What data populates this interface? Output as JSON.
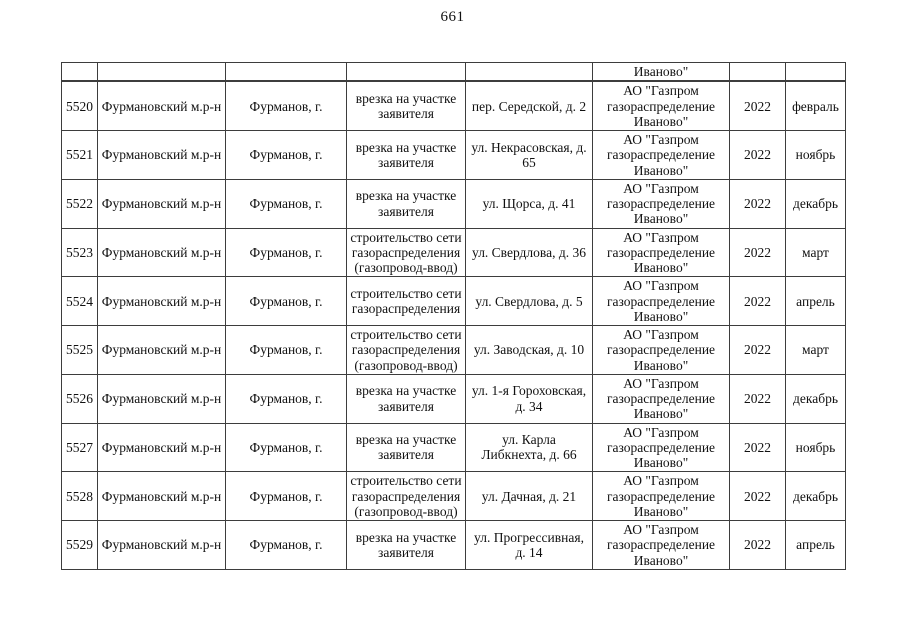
{
  "page": {
    "number": "661"
  },
  "table": {
    "carryover": {
      "num": "",
      "district": "",
      "city": "",
      "work": "",
      "address": "",
      "org": "Иваново\"",
      "year": "",
      "month": ""
    },
    "rows": [
      {
        "num": "5520",
        "district": "Фурмановский м.р-н",
        "city": "Фурманов, г.",
        "work": "врезка на участке\nзаявителя",
        "address": "пер. Середской, д. 2",
        "org": "АО \"Газпром\nгазораспределение\nИваново\"",
        "year": "2022",
        "month": "февраль"
      },
      {
        "num": "5521",
        "district": "Фурмановский м.р-н",
        "city": "Фурманов, г.",
        "work": "врезка на участке\nзаявителя",
        "address": "ул. Некрасовская, д.\n65",
        "org": "АО \"Газпром\nгазораспределение\nИваново\"",
        "year": "2022",
        "month": "ноябрь"
      },
      {
        "num": "5522",
        "district": "Фурмановский м.р-н",
        "city": "Фурманов, г.",
        "work": "врезка на участке\nзаявителя",
        "address": "ул. Щорса, д. 41",
        "org": "АО \"Газпром\nгазораспределение\nИваново\"",
        "year": "2022",
        "month": "декабрь"
      },
      {
        "num": "5523",
        "district": "Фурмановский м.р-н",
        "city": "Фурманов, г.",
        "work": "строительство сети\nгазораспределения\n(газопровод-ввод)",
        "address": "ул. Свердлова, д. 36",
        "org": "АО \"Газпром\nгазораспределение\nИваново\"",
        "year": "2022",
        "month": "март"
      },
      {
        "num": "5524",
        "district": "Фурмановский м.р-н",
        "city": "Фурманов, г.",
        "work": "строительство сети\nгазораспределения",
        "address": "ул. Свердлова, д. 5",
        "org": "АО \"Газпром\nгазораспределение\nИваново\"",
        "year": "2022",
        "month": "апрель"
      },
      {
        "num": "5525",
        "district": "Фурмановский м.р-н",
        "city": "Фурманов, г.",
        "work": "строительство сети\nгазораспределения\n(газопровод-ввод)",
        "address": "ул. Заводская, д. 10",
        "org": "АО \"Газпром\nгазораспределение\nИваново\"",
        "year": "2022",
        "month": "март"
      },
      {
        "num": "5526",
        "district": "Фурмановский м.р-н",
        "city": "Фурманов, г.",
        "work": "врезка на участке\nзаявителя",
        "address": "ул. 1-я Гороховская,\nд. 34",
        "org": "АО \"Газпром\nгазораспределение\nИваново\"",
        "year": "2022",
        "month": "декабрь"
      },
      {
        "num": "5527",
        "district": "Фурмановский м.р-н",
        "city": "Фурманов, г.",
        "work": "врезка на участке\nзаявителя",
        "address": "ул. Карла\nЛибкнехта, д. 66",
        "org": "АО \"Газпром\nгазораспределение\nИваново\"",
        "year": "2022",
        "month": "ноябрь"
      },
      {
        "num": "5528",
        "district": "Фурмановский м.р-н",
        "city": "Фурманов, г.",
        "work": "строительство сети\nгазораспределения\n(газопровод-ввод)",
        "address": "ул. Дачная, д. 21",
        "org": "АО \"Газпром\nгазораспределение\nИваново\"",
        "year": "2022",
        "month": "декабрь"
      },
      {
        "num": "5529",
        "district": "Фурмановский м.р-н",
        "city": "Фурманов, г.",
        "work": "врезка на участке\nзаявителя",
        "address": "ул. Прогрессивная,\nд. 14",
        "org": "АО \"Газпром\nгазораспределение\nИваново\"",
        "year": "2022",
        "month": "апрель"
      }
    ]
  }
}
